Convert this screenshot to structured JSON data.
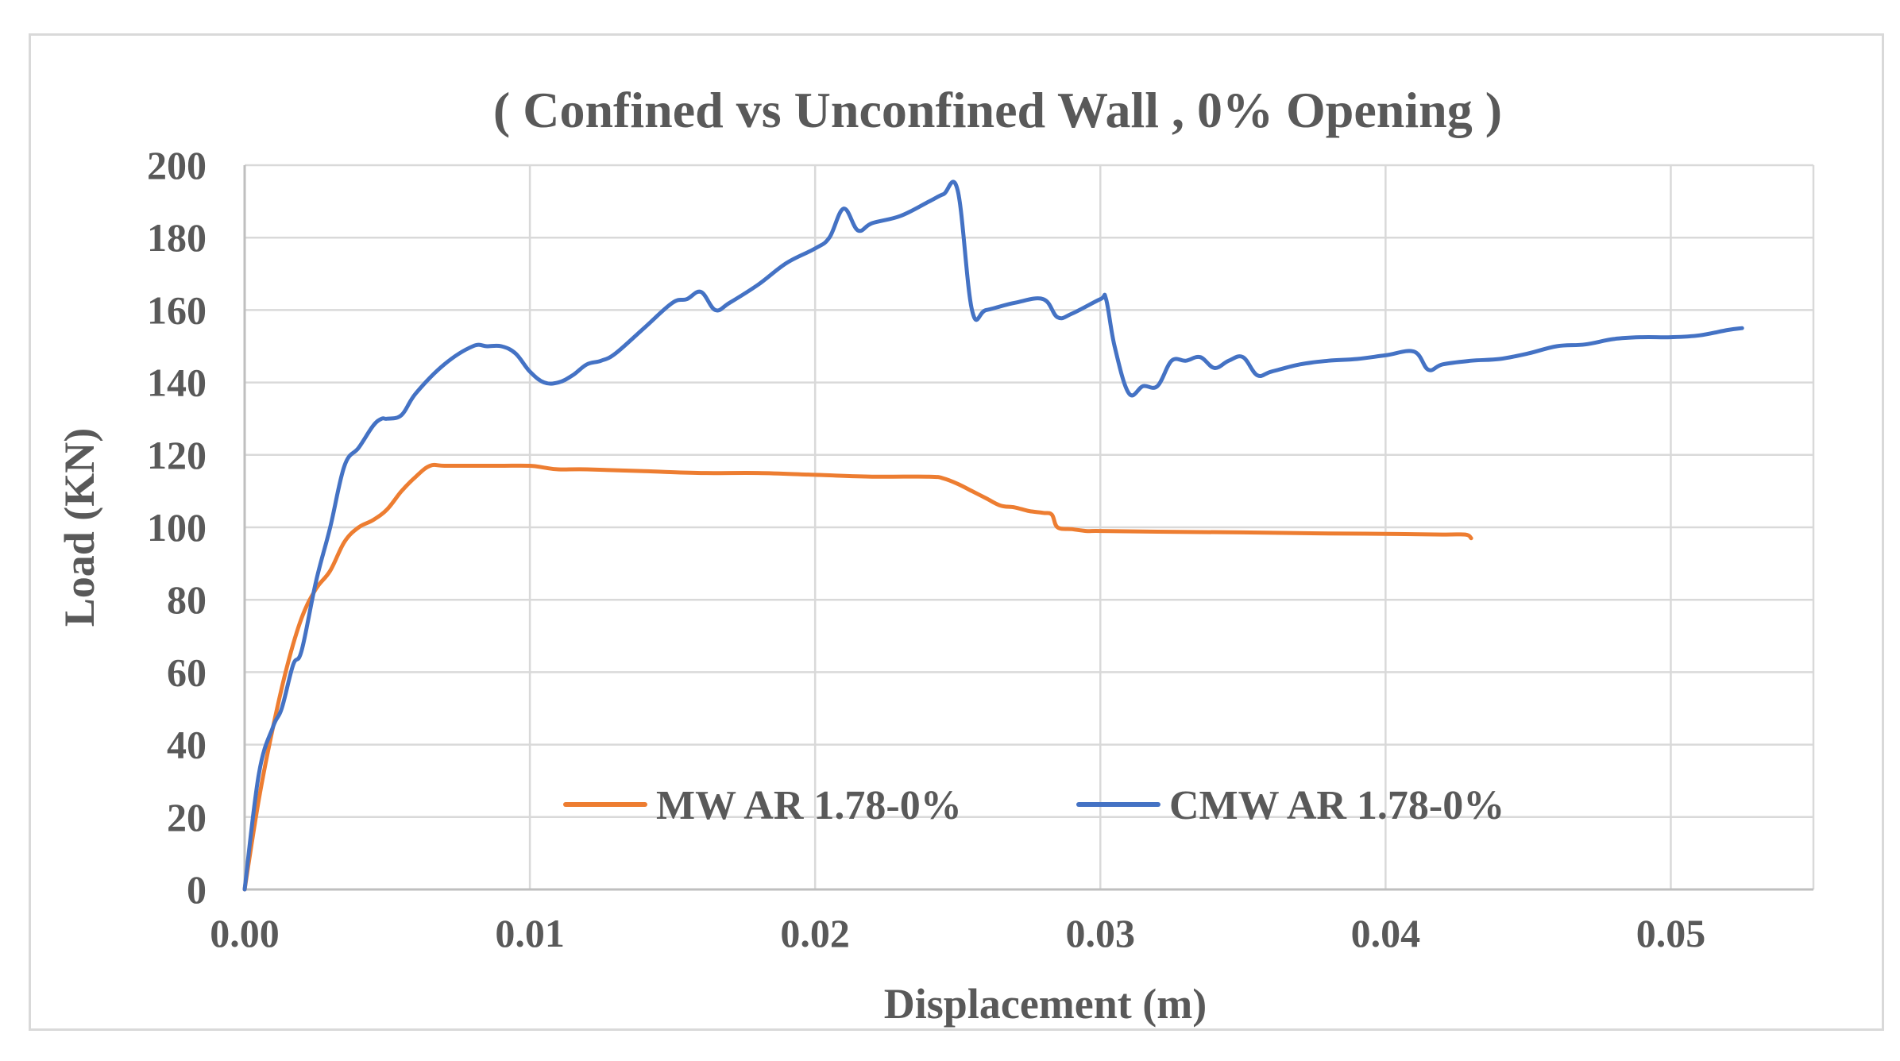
{
  "chart_data": {
    "type": "line",
    "title": "( Confined vs Unconfined Wall , 0% Opening )",
    "xlabel": "Displacement (m)",
    "ylabel": "Load (KN)",
    "xlim": [
      0,
      0.055
    ],
    "ylim": [
      0,
      200
    ],
    "x_ticks": [
      0,
      0.01,
      0.02,
      0.03,
      0.04,
      0.05
    ],
    "x_tick_labels": [
      "0.00",
      "0.01",
      "0.02",
      "0.03",
      "0.04",
      "0.05"
    ],
    "y_ticks": [
      0,
      20,
      40,
      60,
      80,
      100,
      120,
      140,
      160,
      180,
      200
    ],
    "y_tick_labels": [
      "0",
      "20",
      "40",
      "60",
      "80",
      "100",
      "120",
      "140",
      "160",
      "180",
      "200"
    ],
    "grid": true,
    "legend_position": "bottom-center-inside",
    "series": [
      {
        "name": "MW AR 1.78-0%",
        "color": "#ED7D31",
        "x": [
          0,
          0.0005,
          0.001,
          0.0015,
          0.002,
          0.0025,
          0.003,
          0.0035,
          0.004,
          0.0045,
          0.005,
          0.0055,
          0.006,
          0.0065,
          0.007,
          0.008,
          0.009,
          0.01,
          0.0105,
          0.011,
          0.012,
          0.014,
          0.016,
          0.018,
          0.02,
          0.022,
          0.024,
          0.0245,
          0.025,
          0.0255,
          0.026,
          0.0265,
          0.027,
          0.0275,
          0.028,
          0.0283,
          0.0285,
          0.029,
          0.0295,
          0.03,
          0.032,
          0.035,
          0.038,
          0.04,
          0.042,
          0.0428,
          0.043
        ],
        "y": [
          0,
          25,
          45,
          62,
          75,
          83,
          88,
          96,
          100,
          102,
          105,
          110,
          114,
          117,
          117,
          117,
          117,
          117,
          116.5,
          116,
          116,
          115.5,
          115,
          115,
          114.5,
          114,
          114,
          113.5,
          112,
          110,
          108,
          106,
          105.5,
          104.5,
          104,
          103.5,
          100,
          99.5,
          99,
          99,
          98.8,
          98.6,
          98.3,
          98.2,
          98,
          98,
          97
        ]
      },
      {
        "name": "CMW AR 1.78-0%",
        "color": "#4472C4",
        "x": [
          0,
          0.0005,
          0.001,
          0.0013,
          0.0017,
          0.002,
          0.0025,
          0.003,
          0.0035,
          0.004,
          0.0045,
          0.0048,
          0.005,
          0.0055,
          0.006,
          0.007,
          0.008,
          0.0085,
          0.009,
          0.0095,
          0.01,
          0.0105,
          0.011,
          0.0115,
          0.012,
          0.0125,
          0.013,
          0.014,
          0.015,
          0.0155,
          0.016,
          0.0165,
          0.017,
          0.018,
          0.019,
          0.02,
          0.0205,
          0.021,
          0.0215,
          0.022,
          0.023,
          0.024,
          0.0245,
          0.025,
          0.0255,
          0.026,
          0.027,
          0.028,
          0.0285,
          0.029,
          0.03,
          0.0302,
          0.0305,
          0.031,
          0.0315,
          0.032,
          0.0325,
          0.033,
          0.0335,
          0.034,
          0.0345,
          0.035,
          0.0355,
          0.036,
          0.037,
          0.038,
          0.039,
          0.04,
          0.041,
          0.0415,
          0.042,
          0.043,
          0.044,
          0.045,
          0.046,
          0.047,
          0.048,
          0.049,
          0.05,
          0.051,
          0.052,
          0.0525
        ],
        "y": [
          0,
          32,
          45,
          50,
          62,
          66,
          85,
          100,
          117,
          122,
          128,
          130,
          130,
          131,
          137,
          145,
          150,
          150,
          150,
          148,
          143,
          140,
          140,
          142,
          145,
          146,
          148,
          155,
          162,
          163,
          165,
          160,
          162,
          167,
          173,
          177,
          180,
          188,
          182,
          184,
          186,
          190,
          192,
          193,
          160,
          160,
          162,
          163,
          158,
          159,
          163,
          163,
          150,
          137,
          139,
          139,
          146,
          146,
          147,
          144,
          146,
          147,
          142,
          143,
          145,
          146,
          146.5,
          147.5,
          148.5,
          143.5,
          145,
          146,
          146.5,
          148,
          150,
          150.5,
          152,
          152.5,
          152.5,
          153,
          154.5,
          155
        ]
      }
    ]
  }
}
